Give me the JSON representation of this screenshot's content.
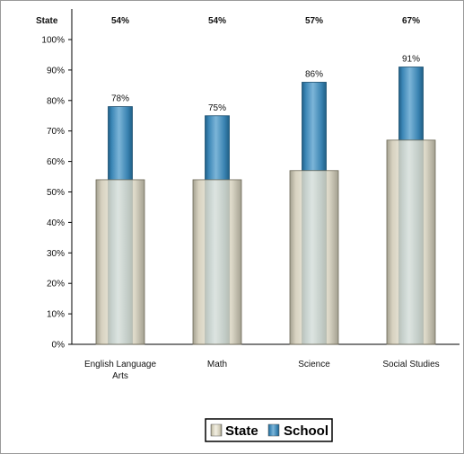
{
  "chart_data": {
    "type": "bar",
    "categories": [
      "English Language Arts",
      "Math",
      "Science",
      "Social Studies"
    ],
    "category_lines": [
      [
        "English Language",
        "Arts"
      ],
      [
        "Math"
      ],
      [
        "Science"
      ],
      [
        "Social Studies"
      ]
    ],
    "series": [
      {
        "name": "State",
        "values": [
          54,
          54,
          57,
          67
        ],
        "color": "#d9d4c2"
      },
      {
        "name": "School",
        "values": [
          78,
          75,
          86,
          91
        ],
        "color": "#3f8dbd"
      }
    ],
    "state_header": "State",
    "state_header_values": [
      "54%",
      "54%",
      "57%",
      "67%"
    ],
    "school_data_labels": [
      "78%",
      "75%",
      "86%",
      "91%"
    ],
    "y_ticks": [
      "0%",
      "10%",
      "20%",
      "30%",
      "40%",
      "50%",
      "60%",
      "70%",
      "80%",
      "90%",
      "100%"
    ],
    "ylim": [
      0,
      100
    ],
    "grid": false,
    "legend_position": "bottom-center",
    "legend": [
      "State",
      "School"
    ]
  }
}
